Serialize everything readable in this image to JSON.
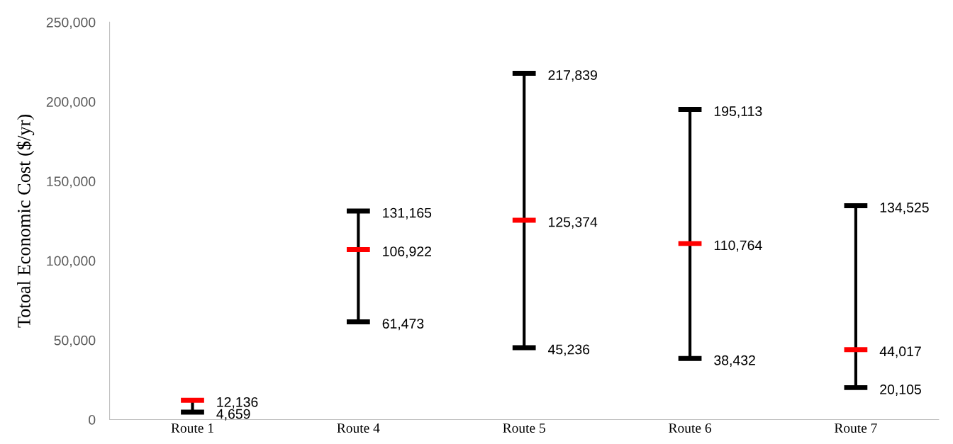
{
  "chart_data": {
    "type": "box",
    "ylabel": "Totoal Economic Cost ($/yr)",
    "categories": [
      "Route 1",
      "Route 4",
      "Route 5",
      "Route 6",
      "Route 7"
    ],
    "color": "#ff0000",
    "boxes": [
      {
        "low": 4659,
        "q1": 12136,
        "median": 12136,
        "q3": 12136,
        "high": 12136
      },
      {
        "low": 61473,
        "q1": 106922,
        "median": 106922,
        "q3": 106922,
        "high": 131165
      },
      {
        "low": 45236,
        "q1": 125374,
        "median": 125374,
        "q3": 125374,
        "high": 217839
      },
      {
        "low": 38432,
        "q1": 110764,
        "median": 110764,
        "q3": 110764,
        "high": 195113
      },
      {
        "low": 20105,
        "q1": 44017,
        "median": 44017,
        "q3": 44017,
        "high": 134525
      }
    ],
    "annotations": [
      {
        "text": "12,136",
        "x": "Route 1",
        "y": 12136
      },
      {
        "text": "4,659",
        "x": "Route 1",
        "y": 4659
      },
      {
        "text": "131,165",
        "x": "Route 4",
        "y": 131165
      },
      {
        "text": "106,922",
        "x": "Route 4",
        "y": 106922
      },
      {
        "text": "61,473",
        "x": "Route 4",
        "y": 61473
      },
      {
        "text": "217,839",
        "x": "Route 5",
        "y": 217839
      },
      {
        "text": "125,374",
        "x": "Route 5",
        "y": 125374
      },
      {
        "text": "45,236",
        "x": "Route 5",
        "y": 45236
      },
      {
        "text": "195,113",
        "x": "Route 6",
        "y": 195113
      },
      {
        "text": "110,764",
        "x": "Route 6",
        "y": 110764
      },
      {
        "text": "38,432",
        "x": "Route 6",
        "y": 38432
      },
      {
        "text": "134,525",
        "x": "Route 7",
        "y": 134525
      },
      {
        "text": "44,017",
        "x": "Route 7",
        "y": 44017
      },
      {
        "text": "20,105",
        "x": "Route 7",
        "y": 20105
      }
    ],
    "ylim": [
      0,
      250000
    ],
    "yticks": [
      {
        "value": 0,
        "label": "0"
      },
      {
        "value": 50000,
        "label": "50,000"
      },
      {
        "value": 100000,
        "label": "100,000"
      },
      {
        "value": 150000,
        "label": "150,000"
      },
      {
        "value": 200000,
        "label": "200,000"
      },
      {
        "value": 250000,
        "label": "250,000"
      }
    ],
    "grid": false,
    "legend": false
  }
}
